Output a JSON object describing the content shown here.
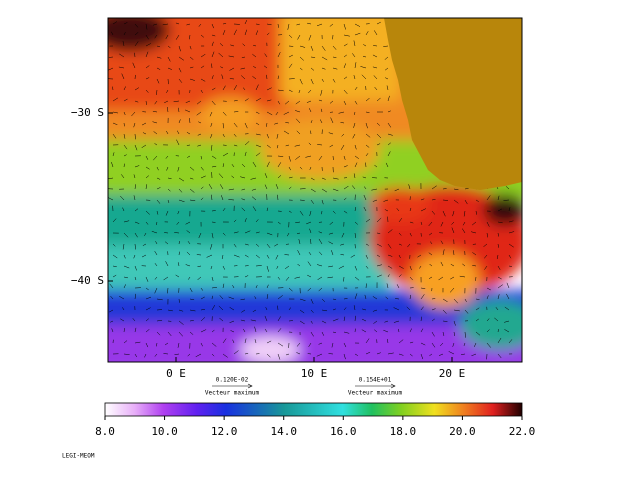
{
  "map": {
    "lat_labels": [
      "−30 S",
      "−40 S"
    ],
    "lon_labels": [
      "0 E",
      "10 E",
      "20 E"
    ]
  },
  "vector_legends": [
    {
      "value": "0.120E-02",
      "label": "Vecteur maximum"
    },
    {
      "value": "0.154E+01",
      "label": "Vecteur maximum"
    }
  ],
  "colorbar": {
    "range": [
      8,
      22
    ],
    "ticks": [
      {
        "value": 8,
        "label": "8.0"
      },
      {
        "value": 10,
        "label": "10.0"
      },
      {
        "value": 12,
        "label": "12.0"
      },
      {
        "value": 14,
        "label": "14.0"
      },
      {
        "value": 16,
        "label": "16.0"
      },
      {
        "value": 18,
        "label": "18.0"
      },
      {
        "value": 20,
        "label": "20.0"
      },
      {
        "value": 22,
        "label": "22.0"
      }
    ]
  },
  "footer": "LEGI-MEOM"
}
